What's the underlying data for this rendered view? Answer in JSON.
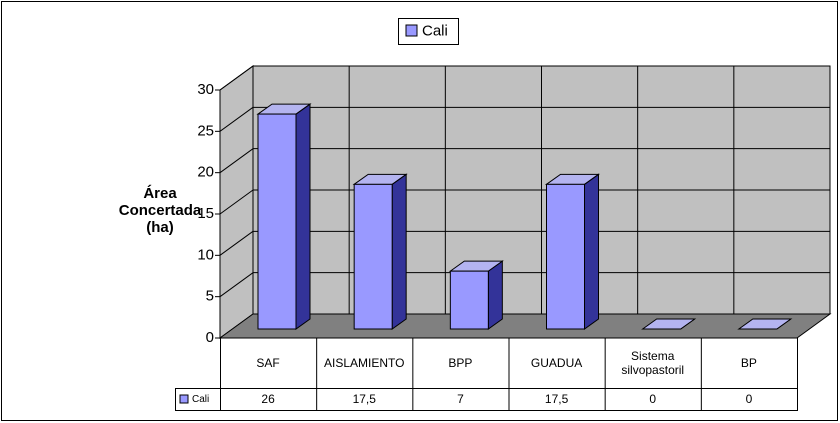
{
  "chart_data": {
    "type": "bar3d",
    "y_label": "Área Concertada (ha)",
    "categories": [
      "SAF",
      "AISLAMIENTO",
      "BPP",
      "GUADUA",
      "Sistema silvopastoril",
      "BP"
    ],
    "series": [
      {
        "name": "Cali",
        "color": "#9999ff",
        "values": [
          26,
          17.5,
          7,
          17.5,
          0,
          0
        ],
        "value_labels": [
          "26",
          "17,5",
          "7",
          "17,5",
          "0",
          "0"
        ]
      }
    ],
    "ylim": [
      0,
      30
    ],
    "yticks": [
      0,
      5,
      10,
      15,
      20,
      25,
      30
    ],
    "grid": true,
    "legend": "top",
    "data_table": true
  }
}
